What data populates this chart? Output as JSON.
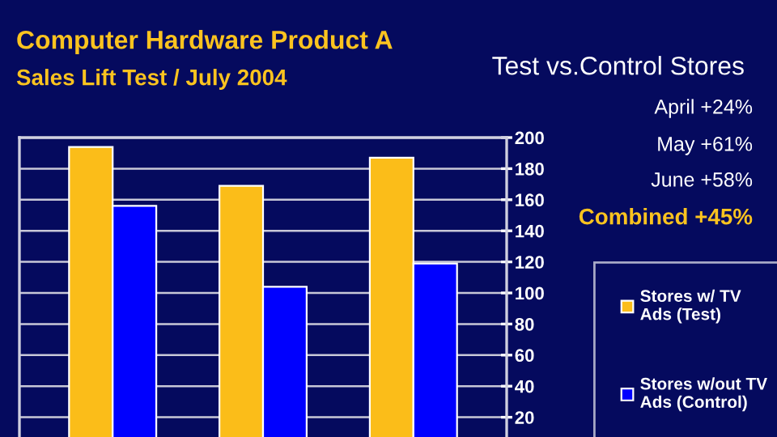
{
  "chart_data": {
    "type": "bar",
    "title": "Computer Hardware Product A",
    "subtitle": "Sales Lift Test / July 2004",
    "categories": [
      null,
      null,
      null
    ],
    "series": [
      {
        "name": "Stores w/ TV Ads (Test)",
        "color": "#fbbd19",
        "values": [
          194,
          169,
          187
        ]
      },
      {
        "name": "Stores w/out TV Ads (Control)",
        "color": "#0000fe",
        "values": [
          156,
          104,
          119
        ]
      }
    ],
    "ylim": [
      0,
      200
    ],
    "yticks": [
      {
        "value": 0,
        "label": null
      },
      20,
      40,
      60,
      80,
      100,
      120,
      140,
      160,
      180,
      200
    ],
    "grid": "y",
    "legend": "right",
    "annotations": [
      "Test vs.Control Stores",
      "April +24%",
      "May +61%",
      "June +58%",
      "Combined +45%"
    ]
  }
}
